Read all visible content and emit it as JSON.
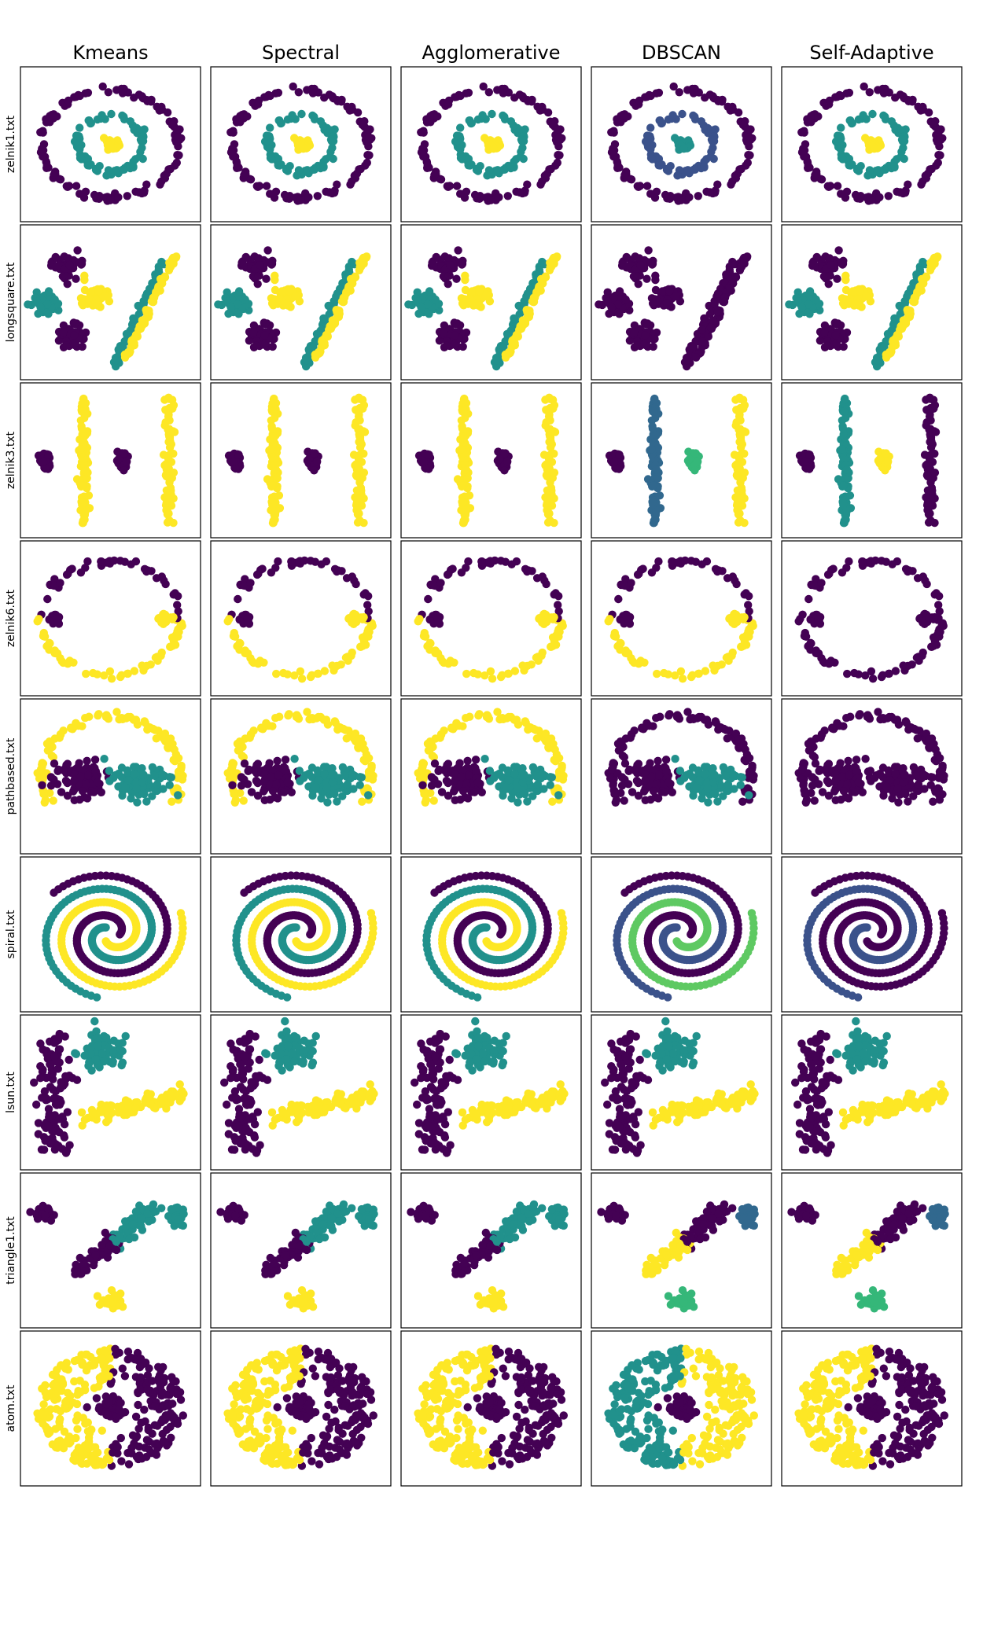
{
  "figure": {
    "columns": [
      "Kmeans",
      "Spectral",
      "Agglomerative",
      "DBSCAN",
      "Self-Adaptive"
    ],
    "rows": [
      "zelnik1.txt",
      "longsquare.txt",
      "zelnik3.txt",
      "zelnik6.txt",
      "pathbased.txt",
      "spiral.txt",
      "lsun.txt",
      "triangle1.txt",
      "atom.txt"
    ]
  },
  "chart_data": {
    "type": "scatter",
    "layout": "grid of 9 datasets x 5 clustering algorithms",
    "grid": false,
    "axes_ticks": false,
    "palette": {
      "c0": "#440154",
      "c1": "#3b528b",
      "c2": "#21918c",
      "c3": "#5ec962",
      "c4": "#fde725"
    },
    "panels": [
      {
        "dataset": "zelnik1.txt",
        "algorithm": "Kmeans",
        "clusters": 3,
        "colors": [
          "#440154",
          "#21918c",
          "#fde725"
        ]
      },
      {
        "dataset": "zelnik1.txt",
        "algorithm": "Spectral",
        "clusters": 3,
        "colors": [
          "#440154",
          "#21918c",
          "#fde725"
        ]
      },
      {
        "dataset": "zelnik1.txt",
        "algorithm": "Agglomerative",
        "clusters": 3,
        "colors": [
          "#440154",
          "#21918c",
          "#fde725"
        ]
      },
      {
        "dataset": "zelnik1.txt",
        "algorithm": "DBSCAN",
        "clusters": 4,
        "colors": [
          "#440154",
          "#3b528b",
          "#21918c",
          "#5ec962"
        ]
      },
      {
        "dataset": "zelnik1.txt",
        "algorithm": "Self-Adaptive",
        "clusters": 3,
        "colors": [
          "#440154",
          "#21918c",
          "#fde725"
        ]
      },
      {
        "dataset": "longsquare.txt",
        "algorithm": "Kmeans",
        "clusters": 3,
        "colors": [
          "#440154",
          "#21918c",
          "#fde725"
        ]
      },
      {
        "dataset": "longsquare.txt",
        "algorithm": "Spectral",
        "clusters": 3,
        "colors": [
          "#440154",
          "#21918c",
          "#fde725"
        ]
      },
      {
        "dataset": "longsquare.txt",
        "algorithm": "Agglomerative",
        "clusters": 3,
        "colors": [
          "#440154",
          "#21918c",
          "#fde725"
        ]
      },
      {
        "dataset": "longsquare.txt",
        "algorithm": "DBSCAN",
        "clusters": 1,
        "colors": [
          "#440154"
        ]
      },
      {
        "dataset": "longsquare.txt",
        "algorithm": "Self-Adaptive",
        "clusters": 3,
        "colors": [
          "#440154",
          "#21918c",
          "#fde725"
        ]
      },
      {
        "dataset": "zelnik3.txt",
        "algorithm": "Kmeans",
        "clusters": 2,
        "colors": [
          "#440154",
          "#fde725"
        ]
      },
      {
        "dataset": "zelnik3.txt",
        "algorithm": "Spectral",
        "clusters": 2,
        "colors": [
          "#440154",
          "#fde725"
        ]
      },
      {
        "dataset": "zelnik3.txt",
        "algorithm": "Agglomerative",
        "clusters": 2,
        "colors": [
          "#440154",
          "#fde725"
        ]
      },
      {
        "dataset": "zelnik3.txt",
        "algorithm": "DBSCAN",
        "clusters": 4,
        "colors": [
          "#440154",
          "#31688e",
          "#35b779",
          "#fde725"
        ]
      },
      {
        "dataset": "zelnik3.txt",
        "algorithm": "Self-Adaptive",
        "clusters": 3,
        "colors": [
          "#440154",
          "#21918c",
          "#fde725"
        ]
      },
      {
        "dataset": "zelnik6.txt",
        "algorithm": "Kmeans",
        "clusters": 2,
        "colors": [
          "#440154",
          "#fde725"
        ]
      },
      {
        "dataset": "zelnik6.txt",
        "algorithm": "Spectral",
        "clusters": 2,
        "colors": [
          "#440154",
          "#fde725"
        ]
      },
      {
        "dataset": "zelnik6.txt",
        "algorithm": "Agglomerative",
        "clusters": 2,
        "colors": [
          "#440154",
          "#fde725"
        ]
      },
      {
        "dataset": "zelnik6.txt",
        "algorithm": "DBSCAN",
        "clusters": 2,
        "colors": [
          "#440154",
          "#fde725"
        ]
      },
      {
        "dataset": "zelnik6.txt",
        "algorithm": "Self-Adaptive",
        "clusters": 1,
        "colors": [
          "#440154"
        ]
      },
      {
        "dataset": "pathbased.txt",
        "algorithm": "Kmeans",
        "clusters": 3,
        "colors": [
          "#440154",
          "#21918c",
          "#fde725"
        ]
      },
      {
        "dataset": "pathbased.txt",
        "algorithm": "Spectral",
        "clusters": 3,
        "colors": [
          "#440154",
          "#21918c",
          "#fde725"
        ]
      },
      {
        "dataset": "pathbased.txt",
        "algorithm": "Agglomerative",
        "clusters": 3,
        "colors": [
          "#440154",
          "#21918c",
          "#fde725"
        ]
      },
      {
        "dataset": "pathbased.txt",
        "algorithm": "DBSCAN",
        "clusters": 2,
        "colors": [
          "#440154",
          "#21918c"
        ]
      },
      {
        "dataset": "pathbased.txt",
        "algorithm": "Self-Adaptive",
        "clusters": 1,
        "colors": [
          "#440154"
        ]
      },
      {
        "dataset": "spiral.txt",
        "algorithm": "Kmeans",
        "clusters": 3,
        "colors": [
          "#440154",
          "#21918c",
          "#fde725"
        ]
      },
      {
        "dataset": "spiral.txt",
        "algorithm": "Spectral",
        "clusters": 3,
        "colors": [
          "#440154",
          "#21918c",
          "#fde725"
        ]
      },
      {
        "dataset": "spiral.txt",
        "algorithm": "Agglomerative",
        "clusters": 3,
        "colors": [
          "#440154",
          "#21918c",
          "#fde725"
        ]
      },
      {
        "dataset": "spiral.txt",
        "algorithm": "DBSCAN",
        "clusters": 4,
        "colors": [
          "#440154",
          "#3b528b",
          "#5ec962",
          "#fde725"
        ]
      },
      {
        "dataset": "spiral.txt",
        "algorithm": "Self-Adaptive",
        "clusters": 2,
        "colors": [
          "#440154",
          "#3b528b"
        ]
      },
      {
        "dataset": "lsun.txt",
        "algorithm": "Kmeans",
        "clusters": 3,
        "colors": [
          "#440154",
          "#21918c",
          "#fde725"
        ]
      },
      {
        "dataset": "lsun.txt",
        "algorithm": "Spectral",
        "clusters": 3,
        "colors": [
          "#440154",
          "#21918c",
          "#fde725"
        ]
      },
      {
        "dataset": "lsun.txt",
        "algorithm": "Agglomerative",
        "clusters": 3,
        "colors": [
          "#440154",
          "#21918c",
          "#fde725"
        ]
      },
      {
        "dataset": "lsun.txt",
        "algorithm": "DBSCAN",
        "clusters": 3,
        "colors": [
          "#440154",
          "#21918c",
          "#fde725"
        ]
      },
      {
        "dataset": "lsun.txt",
        "algorithm": "Self-Adaptive",
        "clusters": 3,
        "colors": [
          "#440154",
          "#21918c",
          "#fde725"
        ]
      },
      {
        "dataset": "triangle1.txt",
        "algorithm": "Kmeans",
        "clusters": 3,
        "colors": [
          "#440154",
          "#21918c",
          "#fde725"
        ]
      },
      {
        "dataset": "triangle1.txt",
        "algorithm": "Spectral",
        "clusters": 3,
        "colors": [
          "#440154",
          "#21918c",
          "#fde725"
        ]
      },
      {
        "dataset": "triangle1.txt",
        "algorithm": "Agglomerative",
        "clusters": 3,
        "colors": [
          "#440154",
          "#21918c",
          "#fde725"
        ]
      },
      {
        "dataset": "triangle1.txt",
        "algorithm": "DBSCAN",
        "clusters": 4,
        "colors": [
          "#440154",
          "#31688e",
          "#35b779",
          "#fde725"
        ]
      },
      {
        "dataset": "triangle1.txt",
        "algorithm": "Self-Adaptive",
        "clusters": 4,
        "colors": [
          "#440154",
          "#31688e",
          "#35b779",
          "#fde725"
        ]
      },
      {
        "dataset": "atom.txt",
        "algorithm": "Kmeans",
        "clusters": 2,
        "colors": [
          "#440154",
          "#fde725"
        ]
      },
      {
        "dataset": "atom.txt",
        "algorithm": "Spectral",
        "clusters": 2,
        "colors": [
          "#440154",
          "#fde725"
        ]
      },
      {
        "dataset": "atom.txt",
        "algorithm": "Agglomerative",
        "clusters": 2,
        "colors": [
          "#440154",
          "#fde725"
        ]
      },
      {
        "dataset": "atom.txt",
        "algorithm": "DBSCAN",
        "clusters": 3,
        "colors": [
          "#440154",
          "#21918c",
          "#fde725"
        ]
      },
      {
        "dataset": "atom.txt",
        "algorithm": "Self-Adaptive",
        "clusters": 2,
        "colors": [
          "#440154",
          "#fde725"
        ]
      }
    ]
  }
}
